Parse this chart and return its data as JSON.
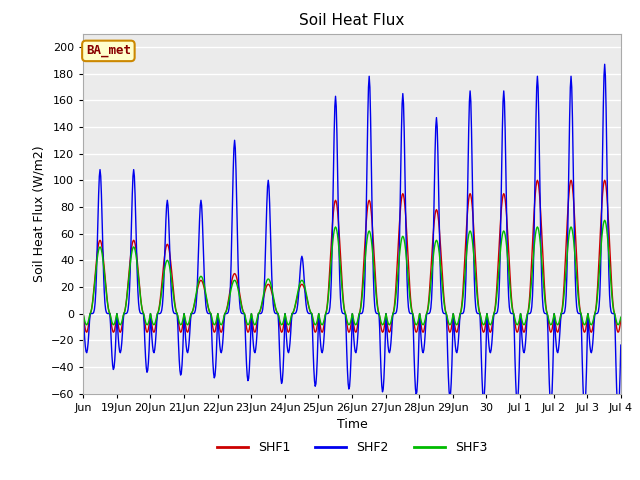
{
  "title": "Soil Heat Flux",
  "ylabel": "Soil Heat Flux (W/m2)",
  "xlabel": "Time",
  "ylim": [
    -60,
    210
  ],
  "yticks": [
    -60,
    -40,
    -20,
    0,
    20,
    40,
    60,
    80,
    100,
    120,
    140,
    160,
    180,
    200
  ],
  "colors": {
    "SHF1": "#cc0000",
    "SHF2": "#0000ee",
    "SHF3": "#00bb00"
  },
  "figure_bg": "#ffffff",
  "plot_bg": "#ebebeb",
  "grid_color": "#ffffff",
  "annotation_text": "BA_met",
  "annotation_bg": "#ffffcc",
  "annotation_border": "#cc8800",
  "annotation_text_color": "#880000",
  "tick_labels": [
    "Jun",
    "19Jun",
    "20Jun",
    "21Jun",
    "22Jun",
    "23Jun",
    "24Jun",
    "25Jun",
    "26Jun",
    "27Jun",
    "28Jun",
    "29Jun",
    "30",
    "Jul 1",
    "Jul 2",
    "Jul 3",
    "Jul 4"
  ],
  "tick_positions": [
    0,
    1,
    2,
    3,
    4,
    5,
    6,
    7,
    8,
    9,
    10,
    11,
    12,
    13,
    14,
    15,
    16
  ],
  "day_amps_shf1": [
    55,
    55,
    52,
    25,
    30,
    22,
    22,
    85,
    85,
    90,
    78,
    90,
    90,
    100,
    100,
    100
  ],
  "day_amps_shf2": [
    108,
    108,
    85,
    85,
    130,
    100,
    43,
    163,
    178,
    165,
    147,
    167,
    167,
    178,
    178,
    187
  ],
  "day_amps_shf3": [
    50,
    50,
    40,
    28,
    25,
    26,
    25,
    65,
    62,
    58,
    55,
    62,
    62,
    65,
    65,
    70
  ],
  "night_amp_shf1": 20,
  "night_amp_shf2": 42,
  "night_amp_shf3": 12,
  "n_days": 16,
  "hours_per_day": 48,
  "shf2_peak_sharpness": 8.0,
  "shf1_peak_sharpness": 2.0,
  "shf3_peak_sharpness": 2.0
}
